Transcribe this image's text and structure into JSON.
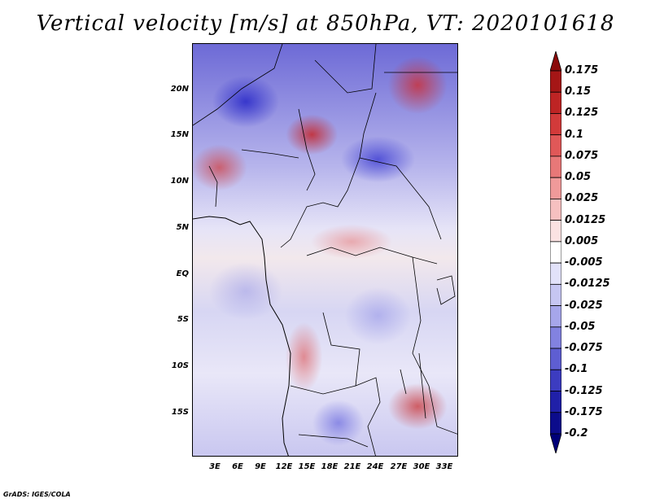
{
  "title": "Vertical velocity [m/s] at 850hPa, VT: 2020101618",
  "credit": "GrADS: IGES/COLA",
  "lat_labels": [
    "20N",
    "15N",
    "10N",
    "5N",
    "EQ",
    "5S",
    "10S",
    "15S"
  ],
  "lon_labels": [
    "3E",
    "6E",
    "9E",
    "12E",
    "15E",
    "18E",
    "21E",
    "24E",
    "27E",
    "30E",
    "33E"
  ],
  "colorbar": {
    "labels": [
      "0.175",
      "0.15",
      "0.125",
      "0.1",
      "0.075",
      "0.05",
      "0.025",
      "0.0125",
      "0.005",
      "-0.005",
      "-0.0125",
      "-0.025",
      "-0.05",
      "-0.075",
      "-0.1",
      "-0.125",
      "-0.175",
      "-0.2"
    ],
    "colors": [
      "#8b0a0a",
      "#a51616",
      "#be2424",
      "#d23a3a",
      "#e05858",
      "#e87878",
      "#f09a9a",
      "#f6c0c0",
      "#fbe2e2",
      "#ffffff",
      "#e2e2fa",
      "#c6c6f2",
      "#a6a6ea",
      "#8282e0",
      "#5e5ed2",
      "#3c3cc0",
      "#2020a8",
      "#0c0c8c",
      "#000078"
    ]
  }
}
